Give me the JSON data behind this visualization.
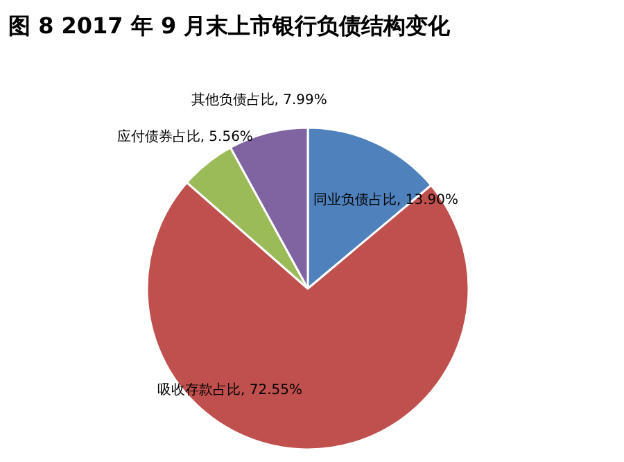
{
  "chart_data": {
    "type": "pie",
    "title": "图 8   2017 年 9 月末上市银行负债结构变化",
    "categories": [
      "同业负债占比",
      "吸收存款占比",
      "应付债券占比",
      "其他负债占比"
    ],
    "values": [
      13.9,
      72.55,
      5.56,
      7.99
    ],
    "value_labels": [
      "13.90%",
      "72.55%",
      "5.56%",
      "7.99%"
    ],
    "colors": [
      "#4f81bd",
      "#c0504d",
      "#9bbb59",
      "#8064a2"
    ]
  }
}
